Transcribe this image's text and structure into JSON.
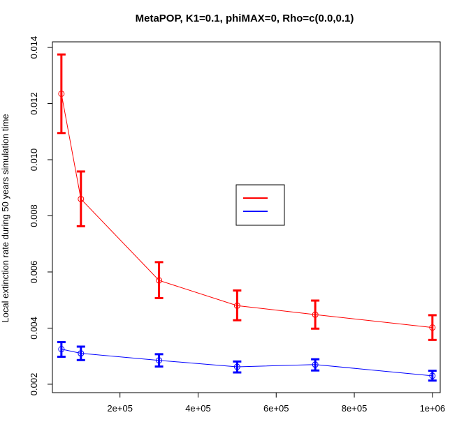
{
  "chart_data": {
    "type": "line",
    "title": "MetaPOP, K1=0.1, phiMAX=0, Rho=c(0.0,0.1)",
    "xlabel": "",
    "ylabel": "Local extinction rate during 50 years simulation time",
    "xlim": [
      27000,
      1020000
    ],
    "ylim": [
      0.0017,
      0.0142
    ],
    "xticks": [
      {
        "value": 200000,
        "label": "2e+05"
      },
      {
        "value": 400000,
        "label": "4e+05"
      },
      {
        "value": 600000,
        "label": "6e+05"
      },
      {
        "value": 800000,
        "label": "8e+05"
      },
      {
        "value": 1000000,
        "label": "1e+06"
      }
    ],
    "yticks": [
      {
        "value": 0.002,
        "label": "0.002"
      },
      {
        "value": 0.004,
        "label": "0.004"
      },
      {
        "value": 0.006,
        "label": "0.006"
      },
      {
        "value": 0.008,
        "label": "0.008"
      },
      {
        "value": 0.01,
        "label": "0.010"
      },
      {
        "value": 0.012,
        "label": "0.012"
      },
      {
        "value": 0.014,
        "label": "0.014"
      }
    ],
    "grid": false,
    "legend": {
      "position": "center-right",
      "entries": [
        {
          "color": "#ff0000"
        },
        {
          "color": "#0000ff"
        }
      ]
    },
    "x": [
      50000,
      100000,
      300000,
      500000,
      700000,
      1000000
    ],
    "series": [
      {
        "color": "#ff0000",
        "values": [
          0.01235,
          0.0086,
          0.0057,
          0.0048,
          0.00448,
          0.00402
        ],
        "lower": [
          0.01095,
          0.00763,
          0.00507,
          0.00428,
          0.00398,
          0.00358
        ],
        "upper": [
          0.01375,
          0.00958,
          0.00635,
          0.00534,
          0.00498,
          0.00446
        ]
      },
      {
        "color": "#0000ff",
        "values": [
          0.00325,
          0.0031,
          0.00285,
          0.00262,
          0.0027,
          0.0023
        ],
        "lower": [
          0.00298,
          0.00286,
          0.00263,
          0.00242,
          0.00249,
          0.00213
        ],
        "upper": [
          0.0035,
          0.00334,
          0.00307,
          0.00281,
          0.00289,
          0.00248
        ]
      }
    ]
  }
}
